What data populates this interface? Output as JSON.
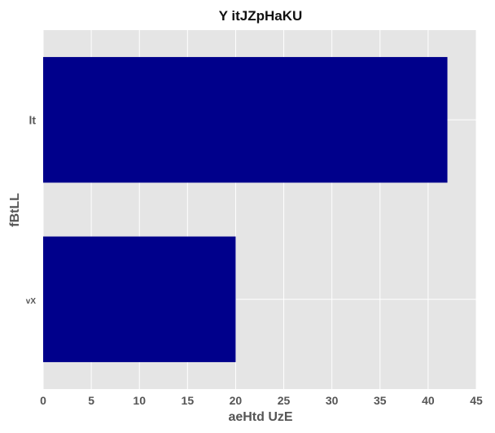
{
  "chart_data": {
    "type": "bar",
    "orientation": "horizontal",
    "title": "Y  itJZpHaKU",
    "xlabel": "aeHtd UzE",
    "ylabel": "fBtLL",
    "categories": [
      "lt",
      "vX"
    ],
    "values": [
      42,
      20
    ],
    "xlim": [
      0,
      45
    ],
    "xticks": [
      0,
      5,
      10,
      15,
      20,
      25,
      30,
      35,
      40,
      45
    ],
    "grid": true,
    "legend": "none",
    "colors": {
      "bar": "#00008b",
      "plot_background": "#e5e5e5",
      "grid": "#ffffff"
    }
  }
}
